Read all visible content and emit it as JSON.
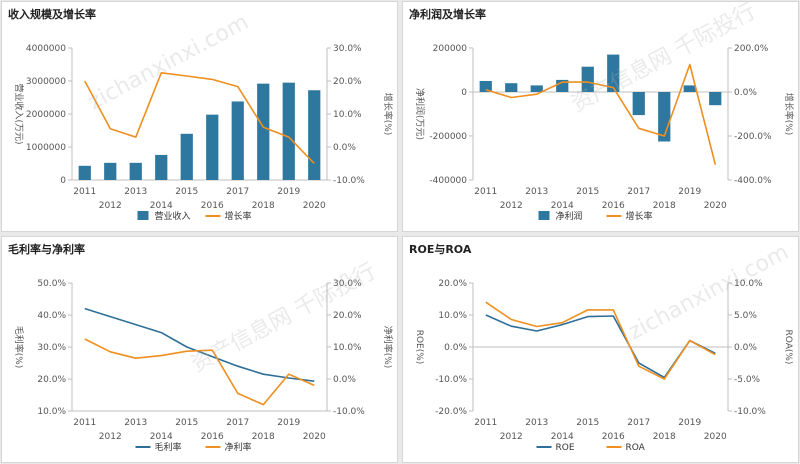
{
  "watermark": {
    "cn": "资产信息网 千际投行",
    "en": "zichanxinxi.com"
  },
  "colors": {
    "bar": "#2e78a0",
    "line_orange": "#ee8f1f",
    "line_blue": "#2d6f98",
    "axis": "#bfbfbf",
    "text": "#555555"
  },
  "chart_data": [
    {
      "id": "revenue",
      "type": "bar+line",
      "title": "收入规模及增长率",
      "categories": [
        "2011",
        "2012",
        "2013",
        "2014",
        "2015",
        "2016",
        "2017",
        "2018",
        "2019",
        "2020"
      ],
      "ylabel_left": "营业收入(万元)",
      "ylabel_right": "增长率(%)",
      "left_ticks": [
        "0",
        "1000000",
        "2000000",
        "3000000",
        "4000000"
      ],
      "right_ticks": [
        "-10.0%",
        "0.0%",
        "10.0%",
        "20.0%",
        "30.0%"
      ],
      "left_ylim": [
        0,
        4000000
      ],
      "right_ylim": [
        -10,
        30
      ],
      "series": [
        {
          "name": "营业收入",
          "kind": "bar",
          "axis": "left",
          "color": "#2e78a0",
          "values": [
            430000,
            520000,
            520000,
            760000,
            1400000,
            1980000,
            2380000,
            2920000,
            2950000,
            2720000
          ]
        },
        {
          "name": "增长率",
          "kind": "line",
          "axis": "right",
          "color": "#ee8f1f",
          "values": [
            20,
            5.5,
            3,
            22.5,
            21.5,
            20.5,
            18.3,
            6,
            3,
            -5
          ]
        }
      ]
    },
    {
      "id": "net-profit",
      "type": "bar+line",
      "title": "净利润及增长率",
      "categories": [
        "2011",
        "2012",
        "2013",
        "2014",
        "2015",
        "2016",
        "2017",
        "2018",
        "2019",
        "2020"
      ],
      "ylabel_left": "净利润(万元)",
      "ylabel_right": "增长率(%)",
      "left_ticks": [
        "-400000",
        "-200000",
        "0",
        "200000"
      ],
      "right_ticks": [
        "-400.0%",
        "-200.0%",
        "0.0%",
        "200.0%"
      ],
      "left_ylim": [
        -400000,
        200000
      ],
      "right_ylim": [
        -400,
        200
      ],
      "series": [
        {
          "name": "净利润",
          "kind": "bar",
          "axis": "left",
          "color": "#2e78a0",
          "values": [
            50000,
            40000,
            30000,
            55000,
            115000,
            170000,
            -105000,
            -225000,
            30000,
            -60000
          ]
        },
        {
          "name": "增长率",
          "kind": "line",
          "axis": "right",
          "color": "#ee8f1f",
          "values": [
            10,
            -25,
            -10,
            45,
            45,
            20,
            -165,
            -200,
            125,
            -330
          ]
        }
      ]
    },
    {
      "id": "margins",
      "type": "line",
      "title": "毛利率与净利率",
      "categories": [
        "2011",
        "2012",
        "2013",
        "2014",
        "2015",
        "2016",
        "2017",
        "2018",
        "2019",
        "2020"
      ],
      "ylabel_left": "毛利率(%)",
      "ylabel_right": "净利率(%)",
      "left_ticks": [
        "10.0%",
        "20.0%",
        "30.0%",
        "40.0%",
        "50.0%"
      ],
      "right_ticks": [
        "-10.0%",
        "0.0%",
        "10.0%",
        "20.0%",
        "30.0%"
      ],
      "left_ylim": [
        10,
        50
      ],
      "right_ylim": [
        -10,
        30
      ],
      "series": [
        {
          "name": "毛利率",
          "kind": "line",
          "axis": "left",
          "color": "#2d6f98",
          "values": [
            42,
            39.5,
            37,
            34.5,
            30,
            27,
            24,
            21.5,
            20.3,
            19.3
          ]
        },
        {
          "name": "净利率",
          "kind": "line",
          "axis": "right",
          "color": "#ee8f1f",
          "values": [
            12.5,
            8.5,
            6.5,
            7.3,
            8.7,
            9,
            -4.5,
            -8,
            1.5,
            -2
          ]
        }
      ]
    },
    {
      "id": "roe-roa",
      "type": "line",
      "title": "ROE与ROA",
      "categories": [
        "2011",
        "2012",
        "2013",
        "2014",
        "2015",
        "2016",
        "2017",
        "2018",
        "2019",
        "2020"
      ],
      "ylabel_left": "ROE(%)",
      "ylabel_right": "ROA(%)",
      "left_ticks": [
        "-20.0%",
        "-10.0%",
        "0.0%",
        "10.0%",
        "20.0%"
      ],
      "right_ticks": [
        "-10.0%",
        "-5.0%",
        "0.0%",
        "5.0%",
        "10.0%"
      ],
      "left_ylim": [
        -20,
        20
      ],
      "right_ylim": [
        -10,
        10
      ],
      "series": [
        {
          "name": "ROE",
          "kind": "line",
          "axis": "left",
          "color": "#2d6f98",
          "values": [
            10,
            6.5,
            5,
            7,
            9.5,
            9.7,
            -5,
            -9.5,
            2,
            -2
          ]
        },
        {
          "name": "ROA",
          "kind": "line",
          "axis": "right",
          "color": "#ee8f1f",
          "values": [
            7,
            4.3,
            3.2,
            3.8,
            5.8,
            5.8,
            -3,
            -5,
            1,
            -1.2
          ]
        }
      ]
    }
  ]
}
